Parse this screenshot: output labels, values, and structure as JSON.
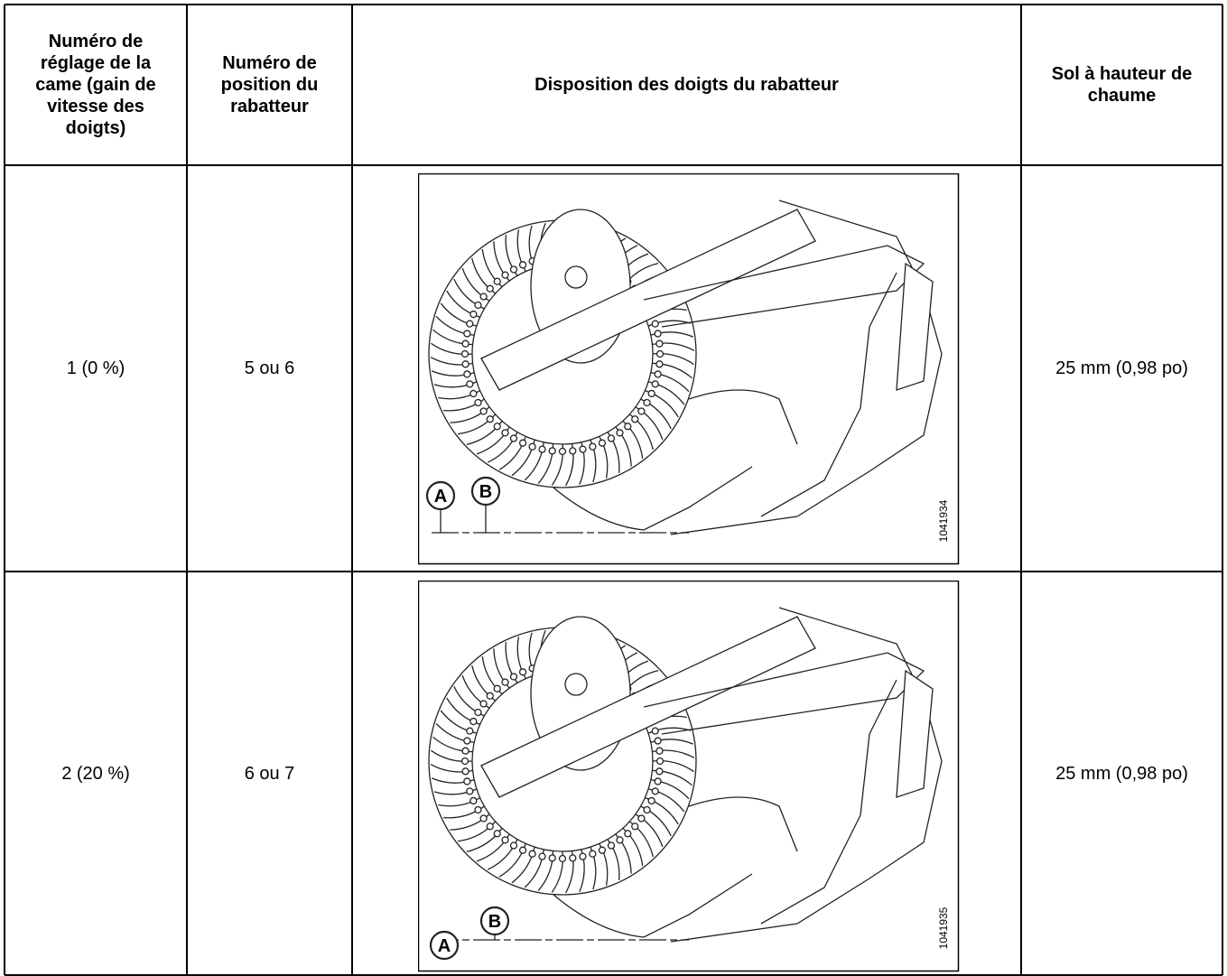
{
  "table": {
    "headers": [
      "Numéro de réglage de la came (gain de vitesse des doigts)",
      "Numéro de position du rabatteur",
      "Disposition des doigts du rabatteur",
      "Sol à hauteur de chaume"
    ],
    "rows": [
      {
        "cam": "1 (0 %)",
        "position": "5 ou 6",
        "figure": {
          "labels": [
            "A",
            "B"
          ],
          "id": "1041934"
        },
        "height": "25 mm (0,98 po)"
      },
      {
        "cam": "2 (20 %)",
        "position": "6 ou 7",
        "figure": {
          "labels": [
            "A",
            "B"
          ],
          "id": "1041935"
        },
        "height": "25 mm (0,98 po)"
      }
    ]
  }
}
